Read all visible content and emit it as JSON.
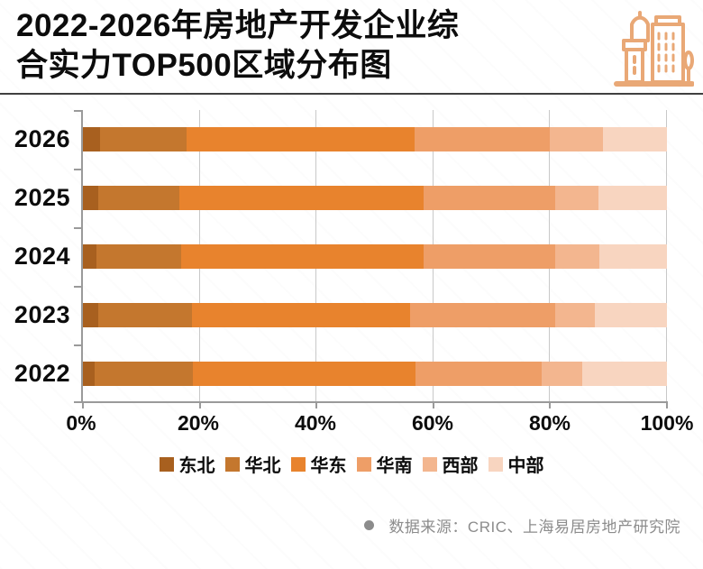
{
  "header": {
    "title_line1": "2022-2026年房地产开发企业综",
    "title_line2": "合实力TOP500区域分布图",
    "icon_color": "#E9A876"
  },
  "chart_data": {
    "type": "bar",
    "orientation": "horizontal",
    "stacked": true,
    "unit": "percent",
    "categories": [
      "2026",
      "2025",
      "2024",
      "2023",
      "2022"
    ],
    "series": [
      {
        "name": "东北",
        "color": "#A8601F",
        "values": [
          3.0,
          2.6,
          2.3,
          2.6,
          2.0
        ]
      },
      {
        "name": "华北",
        "color": "#C4772E",
        "values": [
          14.8,
          13.9,
          14.6,
          16.1,
          16.9
        ]
      },
      {
        "name": "华东",
        "color": "#E8832D",
        "values": [
          39.0,
          41.8,
          41.4,
          37.3,
          38.0
        ]
      },
      {
        "name": "华南",
        "color": "#EE9E67",
        "values": [
          23.2,
          22.5,
          22.5,
          24.8,
          21.7
        ]
      },
      {
        "name": "西部",
        "color": "#F3B68F",
        "values": [
          9.0,
          7.4,
          7.7,
          6.9,
          6.9
        ]
      },
      {
        "name": "中部",
        "color": "#F8D5C0",
        "values": [
          11.0,
          11.8,
          11.5,
          12.3,
          14.5
        ]
      }
    ],
    "x_ticks": [
      "0%",
      "20%",
      "40%",
      "60%",
      "80%",
      "100%"
    ],
    "xlim": [
      0,
      100
    ],
    "grid": true,
    "legend_position": "bottom"
  },
  "footer": {
    "source": "数据来源：CRIC、上海易居房地产研究院"
  }
}
